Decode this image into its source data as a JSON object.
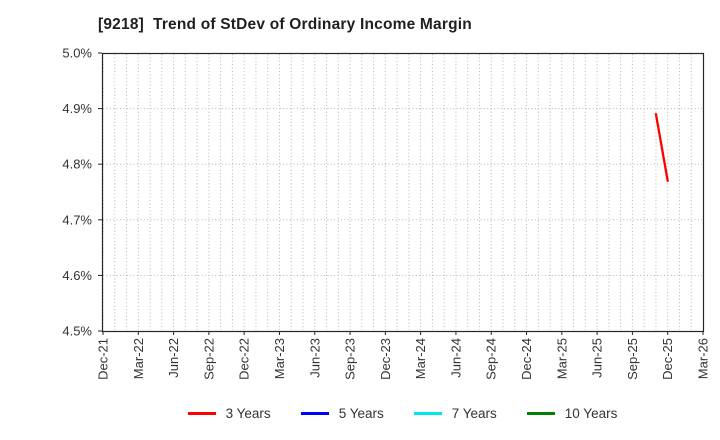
{
  "chart_data": {
    "type": "line",
    "title": "[9218]  Trend of StDev of Ordinary Income Margin",
    "x_axis": {
      "start_label": "Dec-21",
      "end_label": "Mar-26",
      "months_total": 51,
      "tick_every_months": 3,
      "tick_labels": [
        "Dec-21",
        "Mar-22",
        "Jun-22",
        "Sep-22",
        "Dec-22",
        "Mar-23",
        "Jun-23",
        "Sep-23",
        "Dec-23",
        "Mar-24",
        "Jun-24",
        "Sep-24",
        "Dec-24",
        "Mar-25",
        "Jun-25",
        "Sep-25",
        "Dec-25",
        "Mar-26"
      ]
    },
    "y_axis": {
      "min": 4.5,
      "max": 5.0,
      "tick_step": 0.1,
      "unit": "%",
      "tick_labels_top_to_bottom": [
        "5.0%",
        "4.9%",
        "4.8%",
        "4.7%",
        "4.6%",
        "4.5%"
      ]
    },
    "grid": {
      "style": "dotted",
      "vertical": "monthly",
      "horizontal": "every 0.1%"
    },
    "legend_position": "bottom-center",
    "series": [
      {
        "name": "3 Years",
        "color": "#ff0000",
        "points": [
          {
            "month_index": 47,
            "month_label": "Nov-25",
            "value": 4.89
          },
          {
            "month_index": 48,
            "month_label": "Dec-25",
            "value": 4.77
          }
        ]
      },
      {
        "name": "5 Years",
        "color": "#0000ff",
        "points": []
      },
      {
        "name": "7 Years",
        "color": "#00e5ee",
        "points": []
      },
      {
        "name": "10 Years",
        "color": "#008000",
        "points": []
      }
    ],
    "colors": {
      "spine": "#262626",
      "gridline": "#b3b3b3",
      "tick_text": "#333333",
      "title_text": "#1f1f1f",
      "background": "#ffffff"
    }
  }
}
